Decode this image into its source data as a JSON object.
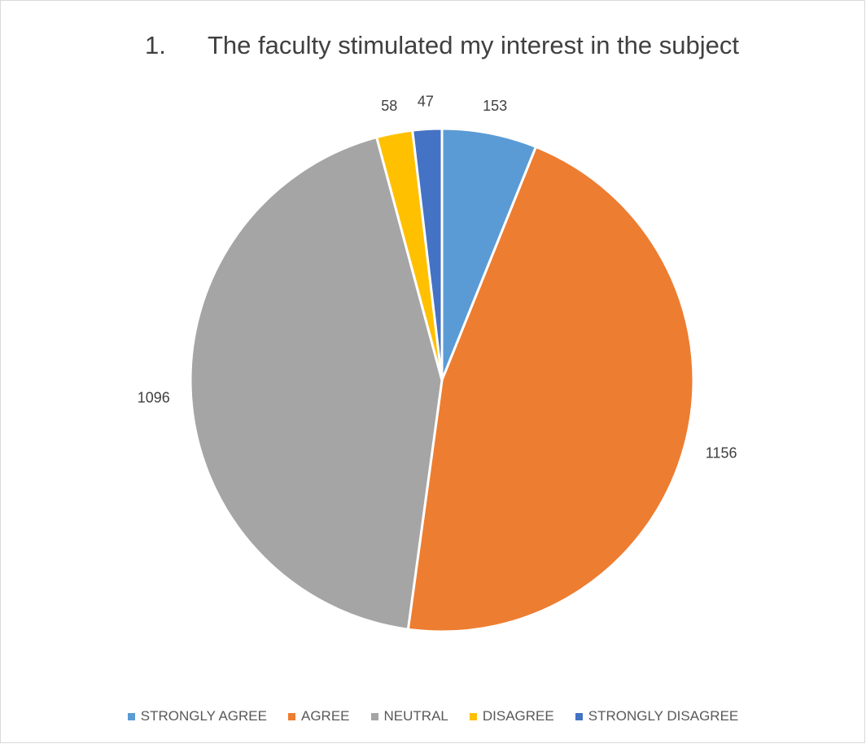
{
  "chart_data": {
    "type": "pie",
    "title": "1.      The faculty stimulated my interest in the subject",
    "categories": [
      "STRONGLY AGREE",
      "AGREE",
      "NEUTRAL",
      "DISAGREE",
      "STRONGLY DISAGREE"
    ],
    "values": [
      153,
      1156,
      1096,
      58,
      47
    ],
    "colors": [
      "#5b9bd5",
      "#ed7d31",
      "#a5a5a5",
      "#ffc000",
      "#4472c4"
    ],
    "legend": "bottom"
  }
}
